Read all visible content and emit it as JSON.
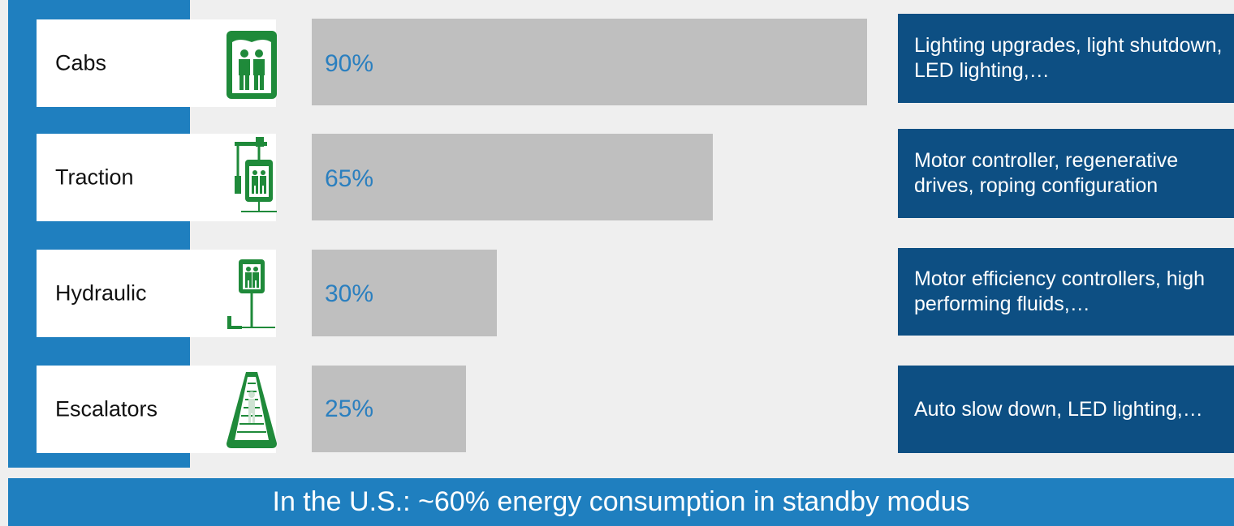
{
  "chart_data": {
    "type": "bar",
    "orientation": "horizontal",
    "categories": [
      "Cabs",
      "Traction",
      "Hydraulic",
      "Escalators"
    ],
    "values": [
      90,
      65,
      30,
      25
    ],
    "value_labels": [
      "90%",
      "65%",
      "30%",
      "25%"
    ],
    "annotations": [
      "Lighting upgrades, light shutdown, LED lighting,…",
      "Motor controller, regenerative drives, roping configuration",
      "Motor efficiency controllers, high performing fluids,…",
      "Auto slow down, LED lighting,…"
    ],
    "icons": [
      "elevator-cab-icon",
      "traction-elevator-icon",
      "hydraulic-elevator-icon",
      "escalator-icon"
    ],
    "colors": {
      "bar": "#bfbfbf",
      "value_label": "#2a7fbf",
      "annotation_bg": "#0d4f83",
      "icon": "#1f8a3a",
      "spine": "#1f7fbf"
    },
    "xlim": [
      0,
      100
    ]
  },
  "footer": {
    "text": "In the U.S.: ~60% energy consumption in standby modus"
  }
}
